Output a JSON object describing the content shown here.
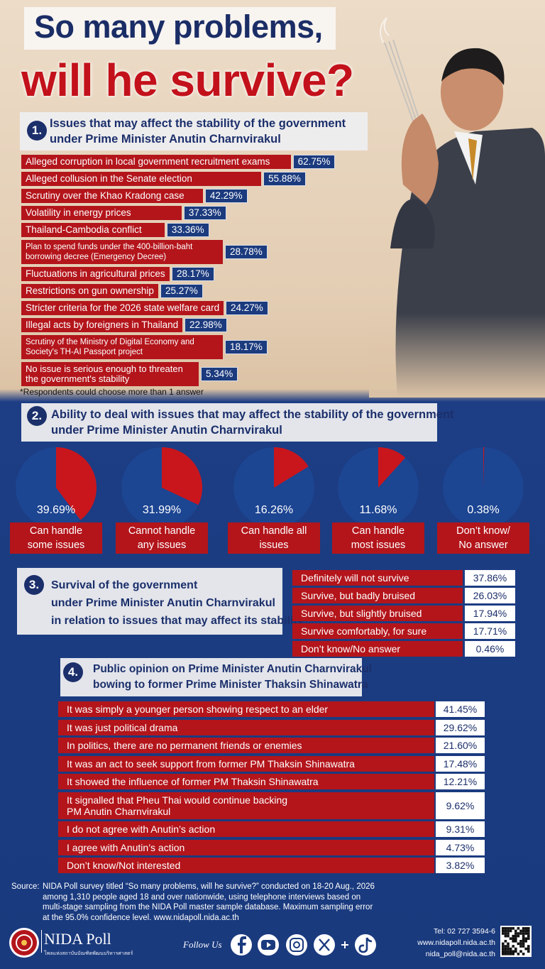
{
  "title_lines": [
    "So many problems,",
    "will he survive?"
  ],
  "chart_data": [
    {
      "type": "bar",
      "number": "1.",
      "title": [
        "Issues that may affect the stability of the government",
        "under Prime Minister Anutin Charnvirakul"
      ],
      "categories": [
        "Alleged corruption in local government recruitment exams",
        "Alleged collusion in the Senate election",
        "Scrutiny over the Khao Kradong case",
        "Volatility in energy prices",
        "Thailand-Cambodia conflict",
        "Plan to spend funds under the 400-billion-baht borrowing decree (Emergency Decree)",
        "Fluctuations in agricultural prices",
        "Restrictions on gun ownership",
        "Stricter criteria for the 2026 state welfare card",
        "Illegal acts by foreigners in Thailand",
        "Scrutiny of the Ministry of Digital Economy and Society's TH-AI Passport project",
        "No issue is serious enough to threaten the government's stability"
      ],
      "values": [
        62.75,
        55.88,
        42.29,
        37.33,
        33.36,
        28.78,
        28.17,
        25.27,
        24.27,
        22.98,
        18.17,
        5.34
      ],
      "value_labels": [
        "62.75%",
        "55.88%",
        "42.29%",
        "37.33%",
        "33.36%",
        "28.78%",
        "28.17%",
        "25.27%",
        "24.27%",
        "22.98%",
        "18.17%",
        "5.34%"
      ],
      "color": "#b3151b",
      "note": "*Respondents could choose more than 1 answer"
    },
    {
      "type": "pie",
      "number": "2.",
      "title": [
        "Ability to deal with issues that may affect the stability of the government",
        "under Prime Minister Anutin Charnvirakul"
      ],
      "categories": [
        "Can handle some issues",
        "Cannot handle any issues",
        "Can handle all issues",
        "Can handle most issues",
        "Don’t know/ No answer"
      ],
      "values": [
        39.69,
        31.99,
        16.26,
        11.68,
        0.38
      ],
      "value_labels": [
        "39.69%",
        "31.99%",
        "16.26%",
        "11.68%",
        "0.38%"
      ],
      "color": "#c9161d",
      "rest_color": "#1c4592"
    },
    {
      "type": "table",
      "number": "3.",
      "title": [
        "Survival of the government",
        "under Prime Minister Anutin Charnvirakul",
        "in relation to issues that may affect its stability"
      ],
      "rows": [
        [
          "Definitely will not survive",
          "37.86%"
        ],
        [
          "Survive, but badly bruised",
          "26.03%"
        ],
        [
          "Survive, but slightly bruised",
          "17.94%"
        ],
        [
          "Survive comfortably, for sure",
          "17.71%"
        ],
        [
          "Don’t know/No answer",
          "0.46%"
        ]
      ]
    },
    {
      "type": "table",
      "number": "4.",
      "title": [
        "Public opinion on Prime Minister Anutin Charnvirakul",
        "bowing to former Prime Minister Thaksin Shinawatra"
      ],
      "rows": [
        [
          "It was simply a younger person showing respect to an elder",
          "41.45%"
        ],
        [
          "It was just political drama",
          "29.62%"
        ],
        [
          "In politics, there are no permanent friends or enemies",
          "21.60%"
        ],
        [
          "It was an act to seek support from former PM Thaksin Shinawatra",
          "17.48%"
        ],
        [
          "It showed the influence of former PM Thaksin Shinawatra",
          "12.21%"
        ],
        [
          "It signalled that Pheu Thai would continue backing PM Anutin Charnvirakul",
          "9.62%"
        ],
        [
          "I do not agree with Anutin’s action",
          "9.31%"
        ],
        [
          "I agree with Anutin’s action",
          "4.73%"
        ],
        [
          "Don’t know/Not interested",
          "3.82%"
        ]
      ]
    }
  ],
  "source_label": "Source:",
  "source_lines": [
    "NIDA Poll survey titled “So many problems, will he survive?” conducted on 18-20 Aug., 2026",
    "among 1,310 people aged 18 and over nationwide, using telephone interviews based on",
    "multi-stage sampling from the NIDA Poll master sample database. Maximum sampling error",
    "at the 95.0% confidence level.  www.nidapoll.nida.ac.th"
  ],
  "footer": {
    "brand": "NIDA Poll",
    "brand_sub": "โพลแห่งสถาบันบัณฑิตพัฒนบริหารศาสตร์",
    "follow": "Follow Us",
    "contacts": [
      "Tel: 02 727 3594-6",
      "www.nidapoll.nida.ac.th",
      "nida_poll@nida.ac.th"
    ]
  }
}
